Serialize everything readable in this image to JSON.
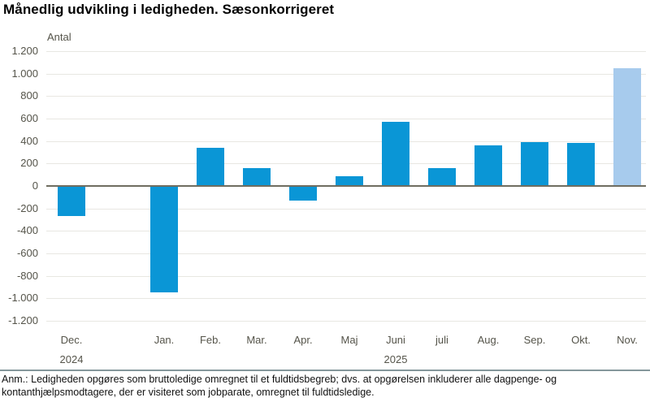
{
  "title": "Månedlig udvikling i ledigheden. Sæsonkorrigeret",
  "footnote": "Anm.: Ledigheden opgøres som bruttoledige omregnet til et fuldtidsbegreb; dvs. at opgørelsen inkluderer alle dagpenge- og kontanthjælpsmodtagere, der er visiteret som jobparate, omregnet til fuldtidsledige.",
  "chart_data": {
    "type": "bar",
    "title": "Månedlig udvikling i ledigheden. Sæsonkorrigeret",
    "xlabel": "",
    "ylabel": "Antal",
    "ylim": [
      -1200,
      1200
    ],
    "ytick_step": 200,
    "ytick_labels": [
      "1.200",
      "1.000",
      "800",
      "600",
      "400",
      "200",
      "0",
      "-200",
      "-400",
      "-600",
      "-800",
      "-1.000",
      "-1.200"
    ],
    "grid": true,
    "legend_position": "none",
    "slots": [
      {
        "label": "Dec.",
        "year": "2024",
        "value": -270,
        "highlight": false
      },
      {
        "label": "",
        "year": "",
        "value": null,
        "highlight": false
      },
      {
        "label": "Jan.",
        "year": "",
        "value": -950,
        "highlight": false
      },
      {
        "label": "Feb.",
        "year": "",
        "value": 340,
        "highlight": false
      },
      {
        "label": "Mar.",
        "year": "",
        "value": 160,
        "highlight": false
      },
      {
        "label": "Apr.",
        "year": "",
        "value": -130,
        "highlight": false
      },
      {
        "label": "Maj",
        "year": "",
        "value": 90,
        "highlight": false
      },
      {
        "label": "Juni",
        "year": "2025",
        "value": 570,
        "highlight": false
      },
      {
        "label": "juli",
        "year": "",
        "value": 160,
        "highlight": false
      },
      {
        "label": "Aug.",
        "year": "",
        "value": 360,
        "highlight": false
      },
      {
        "label": "Sep.",
        "year": "",
        "value": 390,
        "highlight": false
      },
      {
        "label": "Okt.",
        "year": "",
        "value": 380,
        "highlight": false
      },
      {
        "label": "Nov.",
        "year": "",
        "value": 1050,
        "highlight": true
      }
    ],
    "colors": {
      "bar": "#0a96d6",
      "highlight_bar": "#a7cbed",
      "gridline": "#e8e7e2",
      "zeroline": "#6f6d60",
      "axis_text": "#55544a",
      "divider": "#85979b"
    }
  }
}
